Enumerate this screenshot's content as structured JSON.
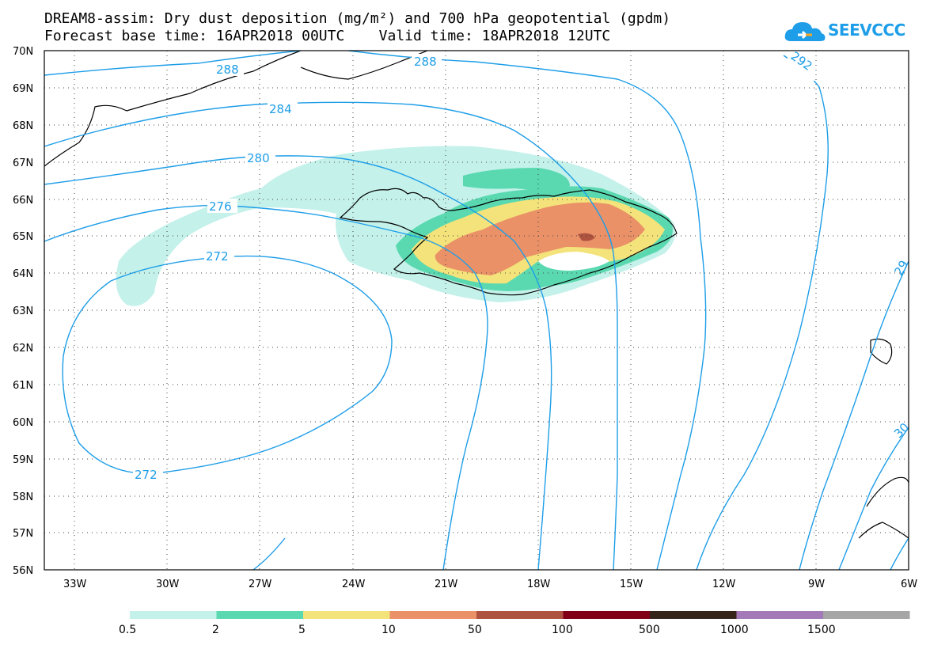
{
  "header": {
    "title_line1": "DREAM8-assim: Dry dust deposition (mg/m²) and 700 hPa geopotential (gpdm)",
    "title_line2": "Forecast base time: 16APR2018 00UTC    Valid time: 18APR2018 12UTC"
  },
  "logo": {
    "text": "SEEVCCC",
    "icon": "cloud-icon",
    "color": "#1e9ee8"
  },
  "map": {
    "lat_labels": [
      "70N",
      "69N",
      "68N",
      "67N",
      "66N",
      "65N",
      "64N",
      "63N",
      "62N",
      "61N",
      "60N",
      "59N",
      "58N",
      "57N",
      "56N"
    ],
    "lon_labels": [
      "33W",
      "30W",
      "27W",
      "24W",
      "21W",
      "18W",
      "15W",
      "12W",
      "9W",
      "6W"
    ],
    "contour_color": "#1e9ee8",
    "contour_labels": [
      "288",
      "288",
      "292",
      "284",
      "280",
      "276",
      "272",
      "272",
      "29",
      "30"
    ]
  },
  "legend": {
    "labels": [
      "0.5",
      "2",
      "5",
      "10",
      "50",
      "100",
      "500",
      "1000",
      "1500"
    ],
    "colors": [
      "#c4f1ea",
      "#5ad9b0",
      "#f4e37a",
      "#ea9168",
      "#ad5340",
      "#800018",
      "#352418",
      "#a379b8",
      "#a6a6a6"
    ]
  }
}
